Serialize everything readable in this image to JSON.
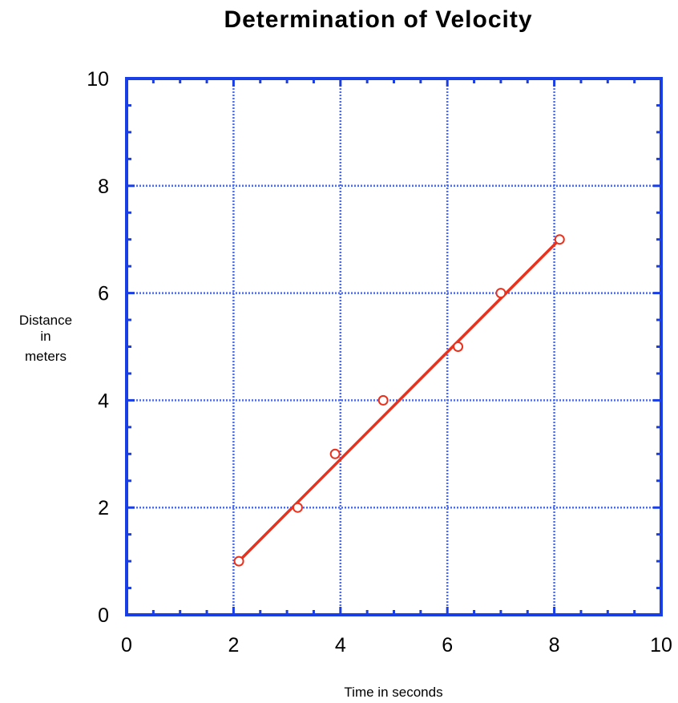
{
  "chart_data": {
    "type": "scatter",
    "title": "Determination of Velocity",
    "xlabel": "Time in seconds",
    "ylabel_lines": [
      "Distance",
      "in",
      "meters"
    ],
    "xlim": [
      0,
      10
    ],
    "ylim": [
      0,
      10
    ],
    "xticks": [
      "0",
      "2",
      "4",
      "6",
      "8",
      "10"
    ],
    "yticks": [
      "0",
      "2",
      "4",
      "6",
      "8",
      "10"
    ],
    "grid": true,
    "series": [
      {
        "x": [
          2.1,
          3.2,
          3.9,
          4.8,
          6.2,
          7.0,
          8.1
        ],
        "y": [
          1,
          2,
          3,
          4,
          5,
          6,
          7
        ],
        "color": "#e8321e",
        "marker": "open-circle"
      }
    ],
    "fit_line": {
      "x": [
        2.1,
        8.1
      ],
      "y": [
        1,
        7
      ],
      "color": "#e8321e"
    },
    "colors": {
      "frame": "#1a3ee6",
      "grid": "#4a6cf0"
    }
  }
}
